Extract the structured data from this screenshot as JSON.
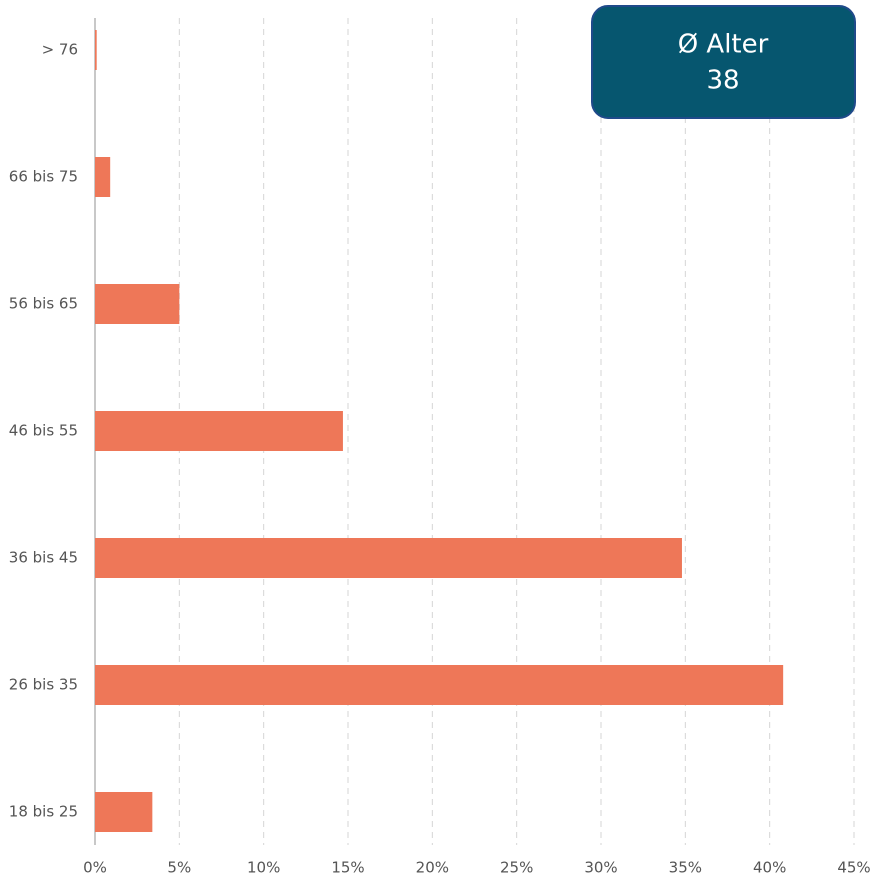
{
  "chart_data": {
    "type": "bar",
    "orientation": "horizontal",
    "categories": [
      "> 76",
      "66 bis 75",
      "56 bis 65",
      "46 bis 55",
      "36 bis 45",
      "26 bis 35",
      "18 bis 25"
    ],
    "values": [
      0.1,
      0.9,
      5.0,
      14.7,
      34.8,
      40.8,
      3.4
    ],
    "color": "#ee7758",
    "xlim": [
      0,
      45
    ],
    "xticks": [
      {
        "value": 0,
        "label": "0%"
      },
      {
        "value": 5,
        "label": "5%"
      },
      {
        "value": 10,
        "label": "10%"
      },
      {
        "value": 15,
        "label": "15%"
      },
      {
        "value": 20,
        "label": "20%"
      },
      {
        "value": 25,
        "label": "25%"
      },
      {
        "value": 30,
        "label": "30%"
      },
      {
        "value": 35,
        "label": "35%"
      },
      {
        "value": 40,
        "label": "40%"
      },
      {
        "value": 45,
        "label": "45%"
      }
    ],
    "grid": true,
    "annotation": {
      "title": "Ø Alter",
      "value": 38
    }
  }
}
